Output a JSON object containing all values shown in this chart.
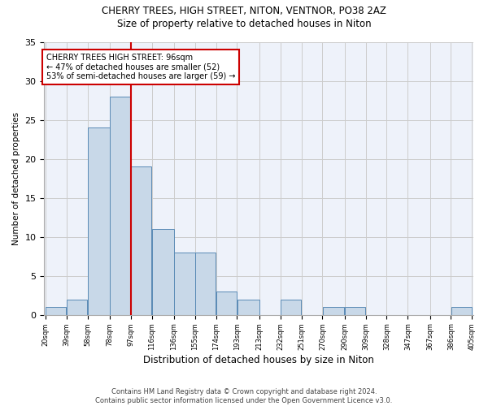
{
  "title1": "CHERRY TREES, HIGH STREET, NITON, VENTNOR, PO38 2AZ",
  "title2": "Size of property relative to detached houses in Niton",
  "xlabel": "Distribution of detached houses by size in Niton",
  "ylabel": "Number of detached properties",
  "footer1": "Contains HM Land Registry data © Crown copyright and database right 2024.",
  "footer2": "Contains public sector information licensed under the Open Government Licence v3.0.",
  "annotation_line1": "CHERRY TREES HIGH STREET: 96sqm",
  "annotation_line2": "← 47% of detached houses are smaller (52)",
  "annotation_line3": "53% of semi-detached houses are larger (59) →",
  "bar_color": "#c8d8e8",
  "bar_edge_color": "#5a8ab5",
  "vline_color": "#cc0000",
  "grid_color": "#cccccc",
  "bg_color": "#eef2fa",
  "bins": [
    20,
    39,
    58,
    78,
    97,
    116,
    136,
    155,
    174,
    193,
    213,
    232,
    251,
    270,
    290,
    309,
    328,
    347,
    367,
    386,
    405
  ],
  "values": [
    1,
    2,
    24,
    28,
    19,
    11,
    8,
    8,
    3,
    2,
    0,
    2,
    0,
    1,
    1,
    0,
    0,
    0,
    0,
    1
  ],
  "tick_labels": [
    "20sqm",
    "39sqm",
    "58sqm",
    "78sqm",
    "97sqm",
    "116sqm",
    "136sqm",
    "155sqm",
    "174sqm",
    "193sqm",
    "213sqm",
    "232sqm",
    "251sqm",
    "270sqm",
    "290sqm",
    "309sqm",
    "328sqm",
    "347sqm",
    "367sqm",
    "386sqm",
    "405sqm"
  ],
  "ylim": [
    0,
    35
  ],
  "yticks": [
    0,
    5,
    10,
    15,
    20,
    25,
    30,
    35
  ]
}
